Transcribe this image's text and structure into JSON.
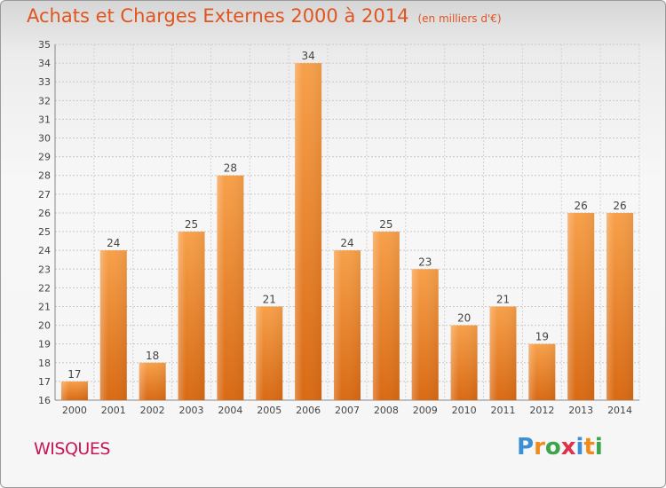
{
  "chart_data": {
    "type": "bar",
    "title": "Achats et Charges Externes 2000 à 2014",
    "subtitle": "(en milliers d'€)",
    "categories": [
      "2000",
      "2001",
      "2002",
      "2003",
      "2004",
      "2005",
      "2006",
      "2007",
      "2008",
      "2009",
      "2010",
      "2011",
      "2012",
      "2013",
      "2014"
    ],
    "values": [
      17,
      24,
      18,
      25,
      28,
      21,
      34,
      24,
      25,
      23,
      20,
      21,
      19,
      26,
      26
    ],
    "ylim": [
      16,
      35
    ],
    "yticks": [
      "16",
      "17",
      "18",
      "19",
      "20",
      "21",
      "22",
      "23",
      "24",
      "25",
      "26",
      "27",
      "28",
      "29",
      "30",
      "31",
      "32",
      "33",
      "34",
      "35"
    ],
    "grid": true,
    "colors": {
      "bar_light": "#f7a04a",
      "bar_dark": "#d96a14",
      "title": "#e0551f",
      "place": "#c5185a"
    }
  },
  "place_name": "WISQUES",
  "logo": {
    "text": "Proxiti",
    "letters": [
      {
        "ch": "P",
        "color": "#3a8fd6"
      },
      {
        "ch": "r",
        "color": "#f08a1c"
      },
      {
        "ch": "o",
        "color": "#3aa54a"
      },
      {
        "ch": "x",
        "color": "#e0304a"
      },
      {
        "ch": "i",
        "color": "#3a8fd6"
      },
      {
        "ch": "t",
        "color": "#f08a1c"
      },
      {
        "ch": "i",
        "color": "#3aa54a"
      }
    ]
  }
}
